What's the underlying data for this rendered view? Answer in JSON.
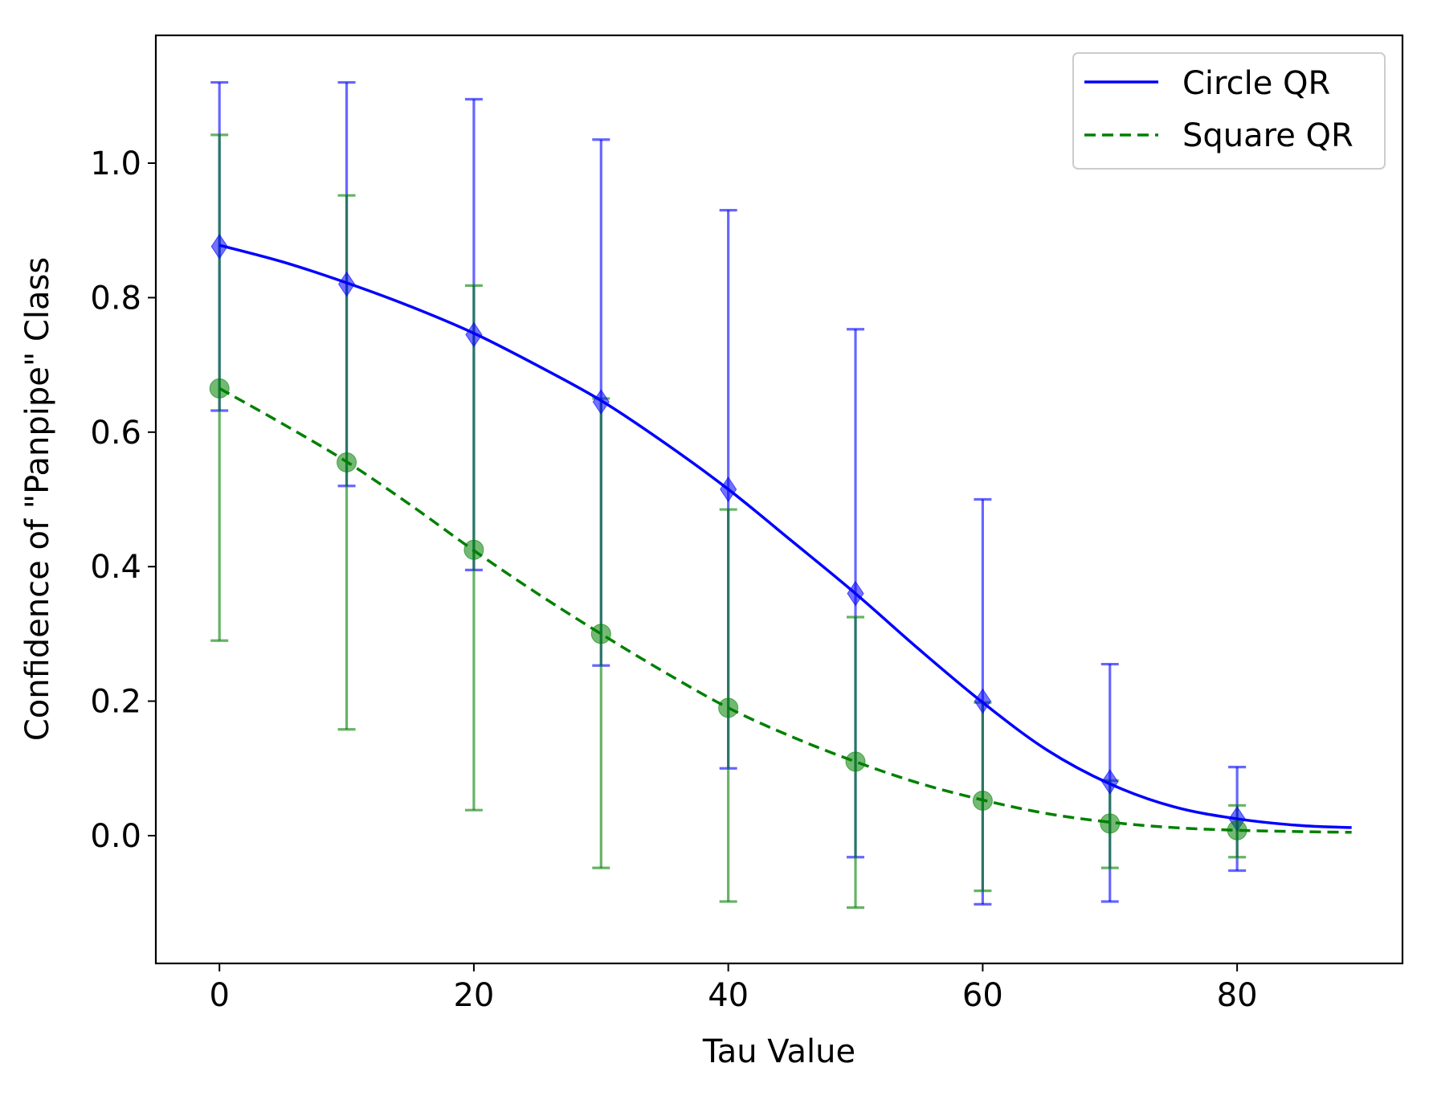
{
  "chart_data": {
    "type": "line",
    "title": "",
    "xlabel": "Tau Value",
    "ylabel": "Confidence of \"Panpipe\" Class",
    "xlim": [
      -5,
      93
    ],
    "ylim": [
      -0.19,
      1.19
    ],
    "xticks": [
      0,
      20,
      40,
      60,
      80
    ],
    "xtick_labels": [
      "0",
      "20",
      "40",
      "60",
      "80"
    ],
    "yticks": [
      0.0,
      0.2,
      0.4,
      0.6,
      0.8,
      1.0
    ],
    "ytick_labels": [
      "0.0",
      "0.2",
      "0.4",
      "0.6",
      "0.8",
      "1.0"
    ],
    "grid": false,
    "legend_position": "top-right",
    "series": [
      {
        "name": "Circle QR",
        "color": "#0000ff",
        "line_style": "solid",
        "marker": "diamond",
        "x": [
          0,
          10,
          20,
          30,
          40,
          50,
          60,
          70,
          80
        ],
        "y": [
          0.876,
          0.82,
          0.745,
          0.645,
          0.515,
          0.36,
          0.2,
          0.08,
          0.025
        ],
        "error_lower": [
          0.632,
          0.52,
          0.395,
          0.253,
          0.1,
          -0.032,
          -0.102,
          -0.098,
          -0.052
        ],
        "error_upper": [
          1.12,
          1.12,
          1.095,
          1.035,
          0.93,
          0.753,
          0.5,
          0.255,
          0.102
        ],
        "curve_x": [
          0,
          5,
          10,
          15,
          20,
          25,
          30,
          35,
          40,
          45,
          50,
          55,
          60,
          65,
          70,
          75,
          80,
          85,
          89
        ],
        "curve_y": [
          0.878,
          0.853,
          0.822,
          0.787,
          0.747,
          0.699,
          0.647,
          0.584,
          0.515,
          0.438,
          0.36,
          0.277,
          0.198,
          0.128,
          0.077,
          0.043,
          0.025,
          0.015,
          0.012
        ]
      },
      {
        "name": "Square QR",
        "color": "#008000",
        "line_style": "dashed",
        "marker": "circle",
        "x": [
          0,
          10,
          20,
          30,
          40,
          50,
          60,
          70,
          80
        ],
        "y": [
          0.665,
          0.555,
          0.425,
          0.3,
          0.19,
          0.11,
          0.052,
          0.018,
          0.008
        ],
        "error_lower": [
          0.29,
          0.158,
          0.038,
          -0.048,
          -0.098,
          -0.107,
          -0.082,
          -0.048,
          -0.032
        ],
        "error_upper": [
          1.042,
          0.952,
          0.818,
          0.65,
          0.485,
          0.325,
          0.198,
          0.082,
          0.045
        ],
        "curve_x": [
          0,
          5,
          10,
          15,
          20,
          25,
          30,
          35,
          40,
          45,
          50,
          55,
          60,
          65,
          70,
          75,
          80,
          85,
          89
        ],
        "curve_y": [
          0.665,
          0.612,
          0.556,
          0.492,
          0.424,
          0.36,
          0.3,
          0.243,
          0.19,
          0.147,
          0.11,
          0.078,
          0.053,
          0.033,
          0.02,
          0.012,
          0.008,
          0.006,
          0.005
        ]
      }
    ]
  }
}
